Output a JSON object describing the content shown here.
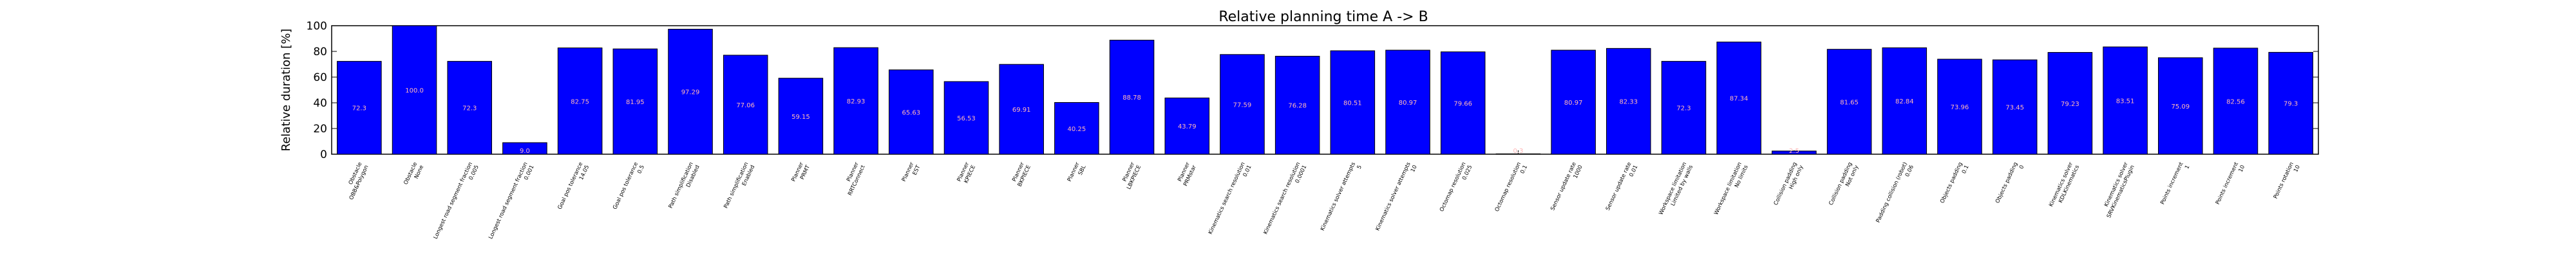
{
  "chart_data": {
    "type": "bar",
    "title": "Relative planning time A -> B",
    "ylabel": "Relative duration [%]",
    "xlabel": "",
    "ylim": [
      0,
      100
    ],
    "yticks": [
      0,
      20,
      40,
      60,
      80,
      100
    ],
    "grid": false,
    "legend": "none",
    "bar_color": "#0000ff",
    "label_color": "#ffb6b6",
    "categories": [
      "Obstacle\nOBB&Polygon",
      "Obstacle\nNone",
      "Longest road segment fraction\n0.005",
      "Longest road segment fraction\n0.001",
      "Goal pos tolerance\n14.05",
      "Goal pos tolerance\n0.5",
      "Path simplification\nDisabled",
      "Path simplification\nEnabled",
      "Planner\nPRMT",
      "Planner\nRRTConnect",
      "Planner\nEST",
      "Planner\nKPIECE",
      "Planner\nBKPIECE",
      "Planner\nSBL",
      "Planner\nLBKPIECE",
      "Planner\nPRMstar",
      "Kinematics search resolution\n0.01",
      "Kinematics search resolution\n0.0001",
      "Kinematics solver attempts\n5",
      "Kinematics solver attempts\n10",
      "Octomap resolution\n0.025",
      "Octomap resolution\n0.1",
      "Sensor update rate\n1000",
      "Sensor update rate\n0.01",
      "Workspace limitation\nLimited by walls",
      "Workspace limitation\nNo limits",
      "Collision padding\nHigh only",
      "Collision padding\nNot only",
      "Padding collision (robot)\n0.06",
      "Objects padding\n0.1",
      "Objects padding\n0",
      "Kinematics solver\nKDLKinematics",
      "Kinematics solver\nSRVKinematicsPlugin",
      "Points increment\n1",
      "Points increment\n10",
      "Points rotation\n10"
    ],
    "values": [
      72.3,
      100.0,
      72.3,
      9.0,
      82.75,
      81.95,
      97.29,
      77.06,
      59.15,
      82.93,
      65.63,
      56.53,
      69.91,
      40.25,
      88.78,
      43.79,
      77.59,
      76.28,
      80.51,
      80.97,
      79.66,
      0.3,
      80.97,
      82.33,
      72.3,
      87.34,
      2.5,
      81.65,
      82.84,
      73.96,
      73.45,
      79.23,
      83.51,
      75.09,
      82.56,
      79.3
    ],
    "value_labels": [
      "72.3",
      "100.0",
      "72.3",
      "9.0",
      "82.75",
      "81.95",
      "97.29",
      "77.06",
      "59.15",
      "82.93",
      "65.63",
      "56.53",
      "69.91",
      "40.25",
      "88.78",
      "43.79",
      "77.59",
      "76.28",
      "80.51",
      "80.97",
      "79.66",
      "0.3",
      "80.97",
      "82.33",
      "72.3",
      "87.34",
      "2.5",
      "81.65",
      "82.84",
      "73.96",
      "73.45",
      "79.23",
      "83.51",
      "75.09",
      "82.56",
      "79.3"
    ]
  }
}
